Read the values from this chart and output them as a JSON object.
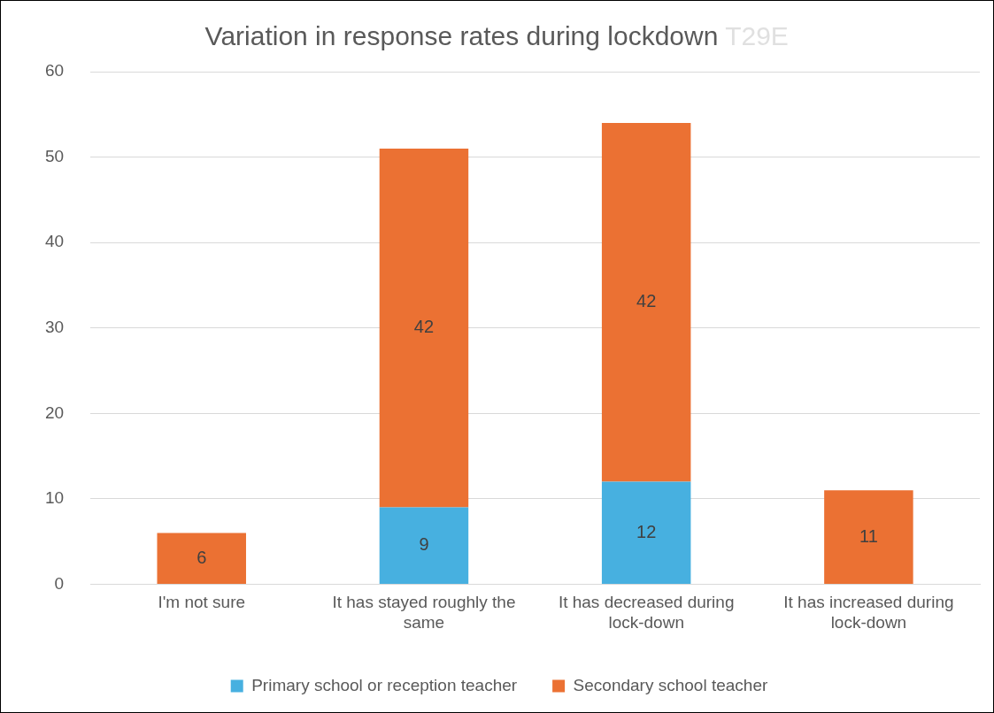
{
  "chart_data": {
    "type": "bar",
    "title": "Variation in response rates during lockdown",
    "subtitle": "T29E",
    "categories": [
      "I'm not sure",
      "It has stayed roughly the same",
      "It has decreased during lock-down",
      "It has increased during lock-down"
    ],
    "series": [
      {
        "name": "Primary school or reception teacher",
        "color": "#47b0e0",
        "values": [
          null,
          9,
          12,
          null
        ]
      },
      {
        "name": "Secondary school teacher",
        "color": "#eb7133",
        "values": [
          6,
          42,
          42,
          11
        ]
      }
    ],
    "stacked": true,
    "data_labels": true,
    "ylim": [
      0,
      60
    ],
    "yticks": [
      0,
      10,
      20,
      30,
      40,
      50,
      60
    ],
    "grid": "y",
    "legend": "bottom"
  }
}
